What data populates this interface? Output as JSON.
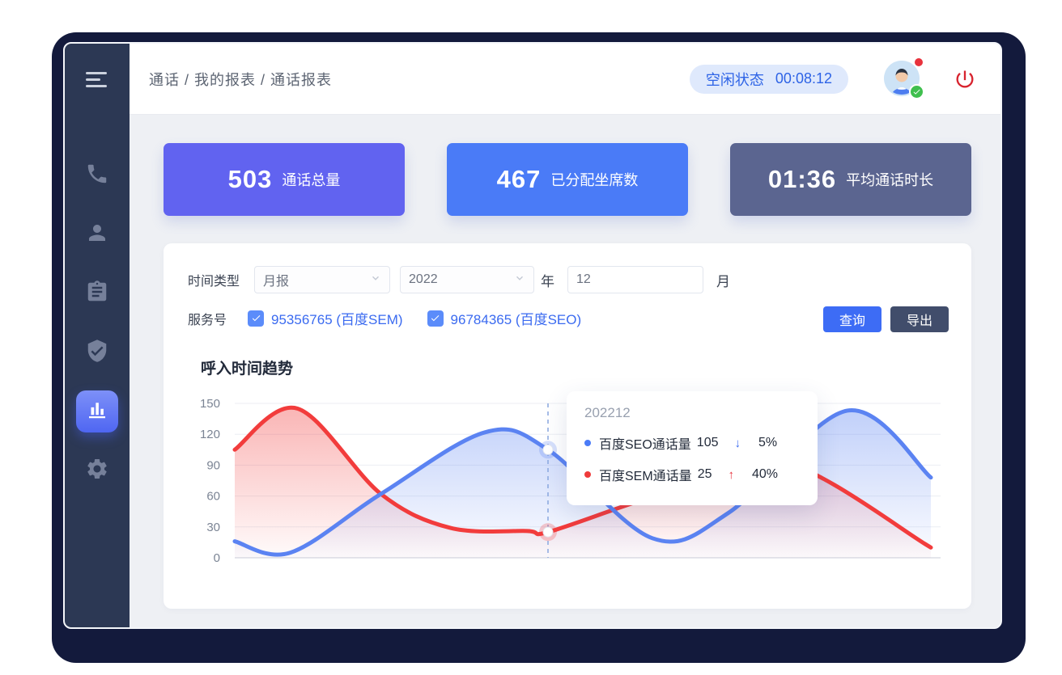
{
  "header": {
    "breadcrumb": "通话 / 我的报表 / 通话报表",
    "status": {
      "label": "空闲状态",
      "timer": "00:08:12"
    }
  },
  "sidebar": {
    "items": [
      {
        "icon": "phone-icon",
        "active": false
      },
      {
        "icon": "user-icon",
        "active": false
      },
      {
        "icon": "clipboard-icon",
        "active": false
      },
      {
        "icon": "shield-check-icon",
        "active": false
      },
      {
        "icon": "bar-chart-icon",
        "active": true
      },
      {
        "icon": "gear-icon",
        "active": false
      }
    ]
  },
  "stats": [
    {
      "value": "503",
      "label": "通话总量",
      "bg": "#6163f0"
    },
    {
      "value": "467",
      "label": "已分配坐席数",
      "bg": "#4a7bf7"
    },
    {
      "value": "01:36",
      "label": "平均通话时长",
      "bg": "#5b6590"
    }
  ],
  "filters": {
    "time_type_label": "时间类型",
    "time_type_value": "月报",
    "year_value": "2022",
    "year_unit": "年",
    "month_value": "12",
    "month_unit": "月",
    "service_label": "服务号",
    "services": [
      {
        "label": "95356765 (百度SEM)",
        "checked": true
      },
      {
        "label": "96784365 (百度SEO)",
        "checked": true
      }
    ],
    "query_button": "查询",
    "export_button": "导出"
  },
  "chart": {
    "title": "呼入时间趋势"
  },
  "chart_data": {
    "type": "line",
    "title": "呼入时间趋势",
    "ylim": [
      0,
      150
    ],
    "yticks": [
      0,
      30,
      60,
      90,
      120,
      150
    ],
    "x_axis_labels_visible": false,
    "grid": true,
    "highlight": {
      "x_fraction": 0.45,
      "period": "202212"
    },
    "series": [
      {
        "name": "百度SEM通话量",
        "color": "#f23c3c",
        "points": [
          [
            0,
            105
          ],
          [
            0.09,
            145
          ],
          [
            0.21,
            62
          ],
          [
            0.31,
            29
          ],
          [
            0.42,
            26
          ],
          [
            0.45,
            25
          ],
          [
            0.58,
            55
          ],
          [
            0.77,
            97
          ],
          [
            1,
            10
          ]
        ],
        "highlight_value": 25
      },
      {
        "name": "百度SEO通话量",
        "color": "#5b83f2",
        "points": [
          [
            0,
            16
          ],
          [
            0.08,
            5
          ],
          [
            0.21,
            62
          ],
          [
            0.36,
            122
          ],
          [
            0.45,
            105
          ],
          [
            0.6,
            19
          ],
          [
            0.71,
            44
          ],
          [
            0.88,
            143
          ],
          [
            1,
            78
          ]
        ],
        "highlight_value": 105
      }
    ]
  },
  "tooltip": {
    "title": "202212",
    "rows": [
      {
        "dot_color": "#4a7bf7",
        "label": "百度SEO通话量",
        "value": "105",
        "arrow": "↓",
        "arrow_color": "#3a6af0",
        "percent": "5%"
      },
      {
        "dot_color": "#ef3b3b",
        "label": "百度SEM通话量",
        "value": "25",
        "arrow": "↑",
        "arrow_color": "#e8323c",
        "percent": "40%"
      }
    ]
  }
}
